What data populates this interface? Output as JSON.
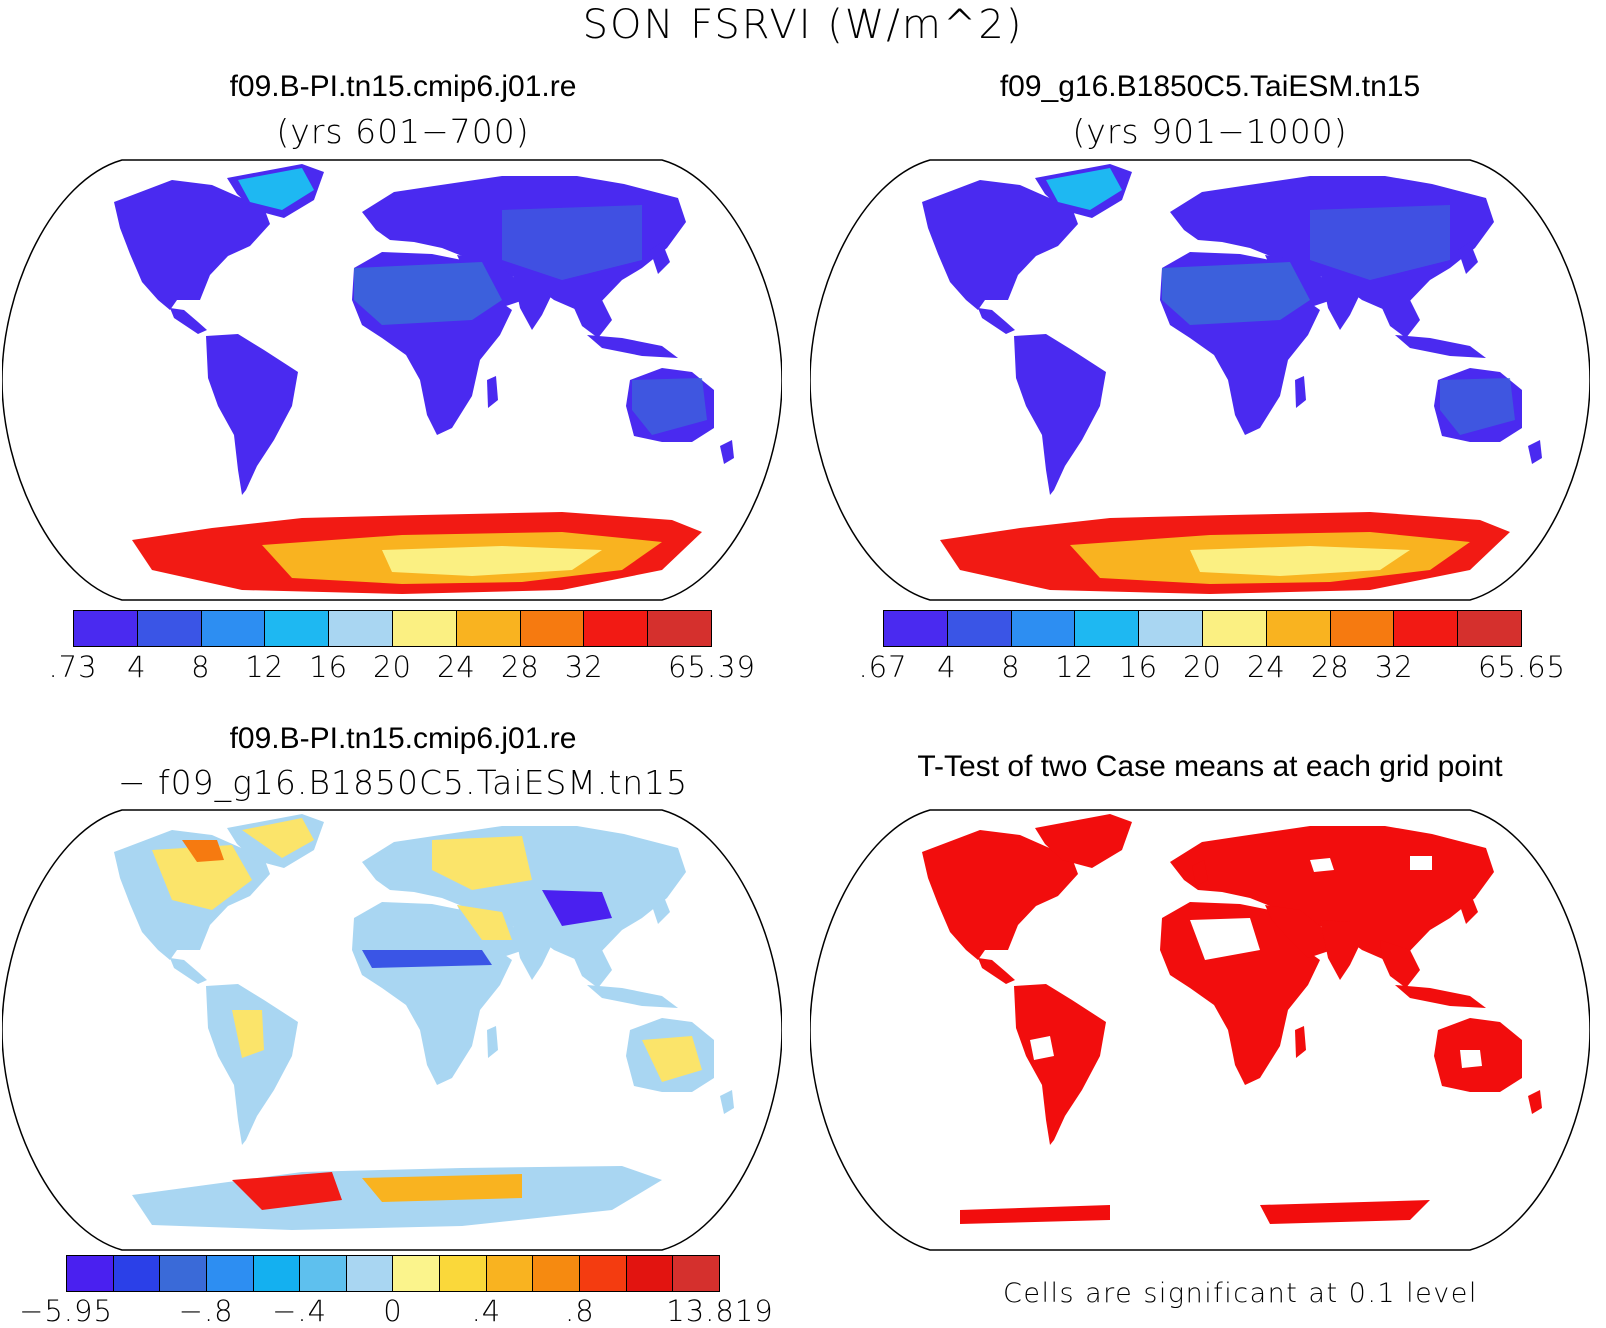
{
  "page_title": "SON FSRVI (W/m^2)",
  "panels": [
    {
      "title": "f09.B-PI.tn15.cmip6.j01.re",
      "subtitle": "(yrs 601−700)",
      "colorbar": {
        "colors": [
          "#4a2af0",
          "#3a55e6",
          "#2d8ef2",
          "#1eb8f2",
          "#a9d6f2",
          "#fbf082",
          "#f9b320",
          "#f67a10",
          "#f21a14",
          "#d5302d"
        ],
        "ticks": [
          ".73",
          "4",
          "8",
          "12",
          "16",
          "20",
          "24",
          "28",
          "32",
          "65.39"
        ]
      }
    },
    {
      "title": "f09_g16.B1850C5.TaiESM.tn15",
      "subtitle": "(yrs 901−1000)",
      "colorbar": {
        "colors": [
          "#4a2af0",
          "#3a55e6",
          "#2d8ef2",
          "#1eb8f2",
          "#a9d6f2",
          "#fbf082",
          "#f9b320",
          "#f67a10",
          "#f21a14",
          "#d5302d"
        ],
        "ticks": [
          ".67",
          "4",
          "8",
          "12",
          "16",
          "20",
          "24",
          "28",
          "32",
          "65.65"
        ]
      }
    },
    {
      "title": "f09.B-PI.tn15.cmip6.j01.re",
      "subtitle": "− f09_g16.B1850C5.TaiESM.tn15",
      "colorbar": {
        "colors": [
          "#4a20f0",
          "#2b40e8",
          "#3a6ad8",
          "#2d8ef2",
          "#14b0f0",
          "#5ec0ee",
          "#a9d6f2",
          "#fbf48c",
          "#fad83a",
          "#f9b320",
          "#f68a10",
          "#f43c10",
          "#e21410",
          "#d5302d"
        ],
        "ticks": [
          "−5.95",
          "−.8",
          "−.4",
          "0",
          ".4",
          ".8",
          "13.819"
        ]
      }
    },
    {
      "title": "T-Test of two Case means at each grid point",
      "note": "Cells are significant at 0.1 level"
    }
  ],
  "colors": {
    "land_low": "#4a2af0",
    "land_mid": "#3a6ad8",
    "antarctic_hot": "#f21a14",
    "antarctic_warm": "#f9b320",
    "antarctic_light": "#fbf082",
    "diff_neutral": "#a9d6f2",
    "diff_warm": "#fbe46a",
    "significant": "#f20d0d"
  }
}
